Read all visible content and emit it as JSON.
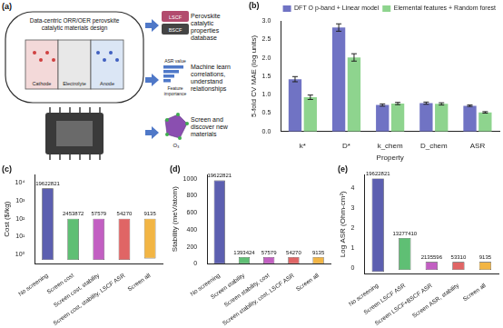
{
  "diagram": {
    "panel_label": "(a)",
    "title": "Data-centric ORR/OER perovskite catalytic materials design",
    "cell_labels": [
      "Cathode",
      "Electrolyte",
      "Anode"
    ],
    "steps": [
      {
        "text": "Perovskite catalytic properties database",
        "items": [
          "LSCF",
          "BSCF"
        ]
      },
      {
        "text": "Machine learn correlations, understand relationships",
        "items": [
          "ASR value",
          "Feature importance"
        ]
      },
      {
        "text": "Screen and discover new materials",
        "items": [
          "O₃"
        ]
      }
    ]
  },
  "chart_data": [
    {
      "panel_label": "(b)",
      "type": "bar",
      "categories": [
        "k*",
        "D*",
        "k_chem",
        "D_chem",
        "ASR"
      ],
      "x_label": "Property",
      "y_label": "5-fold CV MAE (log units)",
      "ylim": [
        0,
        3.0
      ],
      "yticks": [
        {
          "value": 0,
          "label": "0.0"
        },
        {
          "value": 0.5,
          "label": "0.5"
        },
        {
          "value": 1,
          "label": "1.0"
        },
        {
          "value": 1.5,
          "label": "1.5"
        },
        {
          "value": 2,
          "label": "2.0"
        },
        {
          "value": 2.5,
          "label": "2.5"
        },
        {
          "value": 3,
          "label": "3.0"
        }
      ],
      "grid": false,
      "legend": "upper right",
      "series": [
        {
          "name": "DFT O p-band + Linear model",
          "color": "#7073c4",
          "values": [
            1.42,
            2.82,
            0.72,
            0.77,
            0.7
          ],
          "errors": [
            0.07,
            0.1,
            0.03,
            0.03,
            0.02
          ]
        },
        {
          "name": "Elemental features + Random forest",
          "color": "#8ed48e",
          "values": [
            0.93,
            2.01,
            0.76,
            0.75,
            0.52
          ],
          "errors": [
            0.06,
            0.1,
            0.03,
            0.03,
            0.02
          ]
        }
      ]
    },
    {
      "panel_label": "(c)",
      "type": "floating_bar",
      "y_label": "Cost ($/kg)",
      "log": "y",
      "ylim": [
        0.3,
        30000
      ],
      "yticks": [
        {
          "value": 1,
          "label": "10⁰"
        },
        {
          "value": 10,
          "label": "10¹"
        },
        {
          "value": 100,
          "label": "10²"
        },
        {
          "value": 1000,
          "label": "10³"
        },
        {
          "value": 10000,
          "label": "10⁴"
        }
      ],
      "grid": false,
      "categories": [
        "No screening",
        "Screen cost",
        "Screen cost, stability",
        "Screen cost, stability, LSCF ASR",
        "Screen all"
      ],
      "colors": [
        "#5c5fb0",
        "#5fbf74",
        "#c25fc2",
        "#e06565",
        "#f2b544"
      ],
      "low": [
        0.5,
        0.5,
        0.5,
        0.5,
        0.6
      ],
      "high": [
        5000,
        100,
        100,
        100,
        100
      ],
      "median": [
        60,
        20,
        20,
        20,
        20
      ],
      "counts": [
        19622821,
        2453872,
        57579,
        54270,
        9135
      ]
    },
    {
      "panel_label": "(d)",
      "type": "floating_bar",
      "y_label": "Stability (meV/atom)",
      "ylim": [
        0,
        1050
      ],
      "yticks": [
        0,
        200,
        400,
        600,
        800,
        1000
      ],
      "grid": false,
      "categories": [
        "No screening",
        "Screen stability",
        "Screen stability, cost",
        "Screen stability, cost, LSCF ASR",
        "Screen all"
      ],
      "colors": [
        "#5c5fb0",
        "#5fbf74",
        "#c25fc2",
        "#e06565",
        "#f2b544"
      ],
      "low": [
        0,
        0,
        0,
        0,
        0
      ],
      "high": [
        980,
        80,
        80,
        80,
        80
      ],
      "median": [
        220,
        45,
        45,
        45,
        45
      ],
      "counts": [
        19622821,
        1393424,
        57579,
        54270,
        9135
      ]
    },
    {
      "panel_label": "(e)",
      "type": "floating_bar",
      "y_label": "Log ASR (Ohm-cm²)",
      "ylim": [
        -0.3,
        4.7
      ],
      "yticks": [
        0,
        1,
        2,
        3,
        4
      ],
      "grid": false,
      "categories": [
        "No screening",
        "Screen LSCF ASR",
        "Screen LSCF+BSCF ASR",
        "Screen ASR, stability",
        "Screen all"
      ],
      "colors": [
        "#5c5fb0",
        "#5fbf74",
        "#c25fc2",
        "#e06565",
        "#f2b544"
      ],
      "low": [
        -0.2,
        -0.1,
        -0.1,
        -0.1,
        -0.1
      ],
      "high": [
        4.5,
        1.5,
        0.3,
        0.3,
        0.3
      ],
      "median": [
        0.9,
        0.4,
        0.1,
        0.1,
        0.1
      ],
      "counts": [
        19622821,
        13277410,
        2135596,
        53310,
        9135
      ]
    }
  ]
}
